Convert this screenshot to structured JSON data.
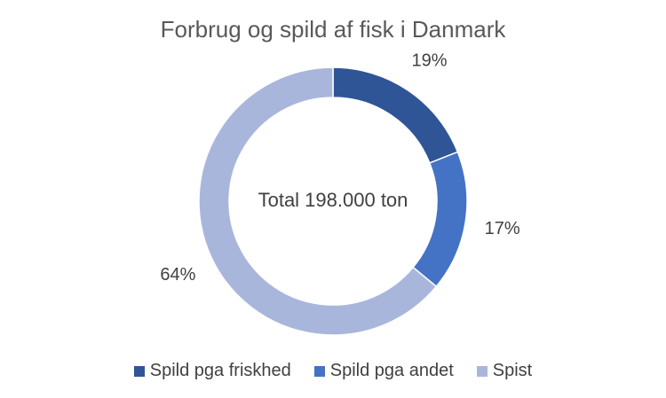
{
  "chart_data": {
    "type": "pie",
    "title": "Forbrug og spild af fisk i Danmark",
    "center_label": "Total 198.000 ton",
    "categories": [
      "Spild pga friskhed",
      "Spild pga andet",
      "Spist"
    ],
    "values": [
      19,
      17,
      64
    ],
    "value_labels": [
      "19%",
      "17%",
      "64%"
    ],
    "colors": [
      "#2f5597",
      "#4472c4",
      "#a9b6dc"
    ],
    "legend_position": "bottom",
    "donut": true
  }
}
